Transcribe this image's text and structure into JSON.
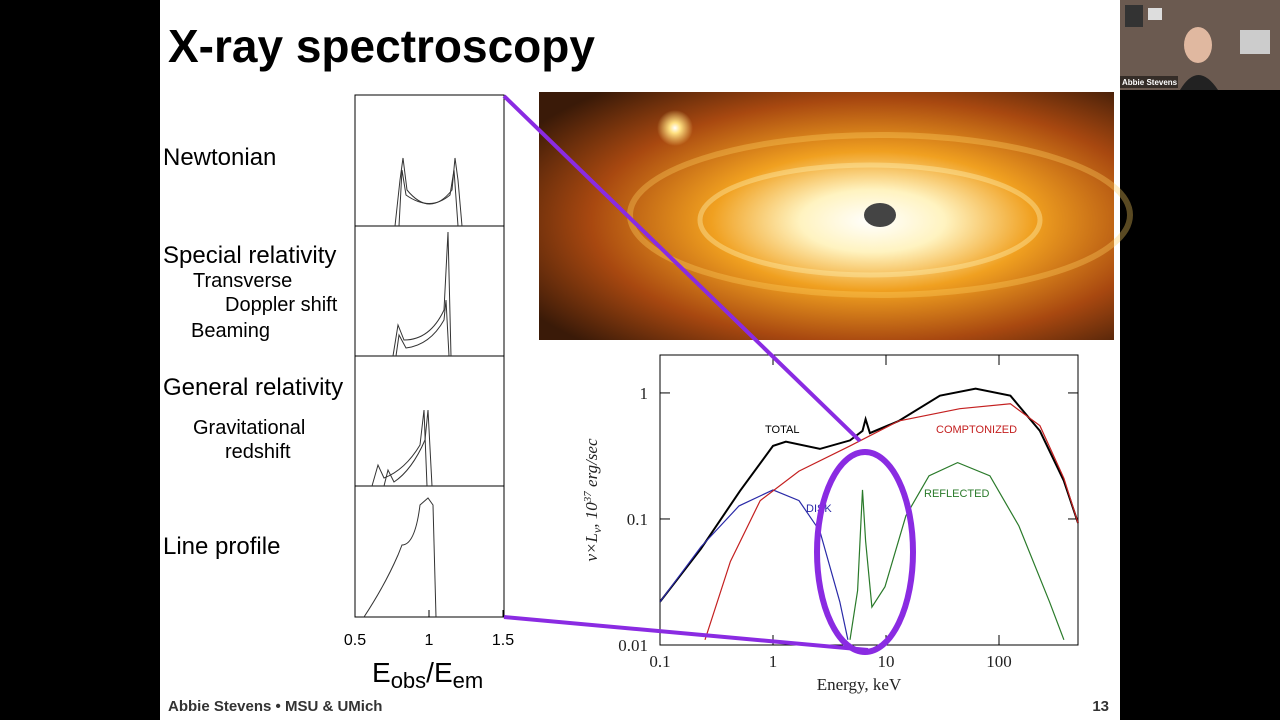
{
  "title": "X-ray spectroscopy",
  "webcam": {
    "name": "Abbie Stevens"
  },
  "profiles": {
    "labels": [
      "Newtonian",
      "Special relativity",
      "Transverse",
      "Doppler shift",
      "Beaming",
      "General relativity",
      "Gravitational",
      "redshift",
      "Line profile"
    ],
    "xlim": [
      0.5,
      1.5
    ],
    "xticks": [
      0.5,
      1,
      1.5
    ],
    "xlabel": [
      "E",
      "obs",
      "/E",
      "em"
    ]
  },
  "chart_data": {
    "type": "line",
    "log_x": true,
    "log_y": true,
    "xlim": [
      0.1,
      500
    ],
    "ylim": [
      0.01,
      2
    ],
    "xticks": [
      0.1,
      1,
      10,
      100
    ],
    "yticks": [
      0.01,
      0.1,
      1
    ],
    "xlabel": "Energy, keV",
    "ylabel": [
      "ν×L",
      "ν",
      ", 10",
      "37",
      " erg/sec"
    ],
    "series": [
      {
        "name": "TOTAL",
        "color": "#000000",
        "x": [
          0.1,
          0.23,
          0.51,
          1,
          1.3,
          2.6,
          4.8,
          6.2,
          6.6,
          7.2,
          13,
          30,
          62,
          126,
          230,
          375,
          500
        ],
        "values": [
          0.022,
          0.058,
          0.167,
          0.38,
          0.41,
          0.36,
          0.42,
          0.5,
          0.62,
          0.48,
          0.6,
          0.95,
          1.08,
          0.95,
          0.5,
          0.2,
          0.093
        ]
      },
      {
        "name": "DISK",
        "color": "#2a2aa8",
        "x": [
          0.1,
          0.23,
          0.5,
          1,
          1.7,
          2.6,
          3.9,
          4.6
        ],
        "values": [
          0.022,
          0.06,
          0.127,
          0.17,
          0.14,
          0.08,
          0.022,
          0.011
        ]
      },
      {
        "name": "COMPTONIZED",
        "color": "#c42020",
        "x": [
          0.25,
          0.42,
          0.77,
          1.7,
          4.8,
          13,
          45,
          126,
          230,
          375,
          500
        ],
        "values": [
          0.011,
          0.046,
          0.14,
          0.24,
          0.38,
          0.6,
          0.75,
          0.82,
          0.55,
          0.21,
          0.093
        ]
      },
      {
        "name": "REFLECTED",
        "color": "#2a7a2a",
        "x": [
          4.8,
          5.6,
          6.2,
          6.6,
          7.5,
          9.8,
          15,
          24,
          43,
          83,
          150,
          280,
          375
        ],
        "values": [
          0.011,
          0.027,
          0.17,
          0.067,
          0.02,
          0.029,
          0.106,
          0.22,
          0.28,
          0.22,
          0.088,
          0.022,
          0.011
        ]
      }
    ]
  },
  "footer": {
    "author": "Abbie Stevens • MSU & UMich",
    "page": 13
  }
}
